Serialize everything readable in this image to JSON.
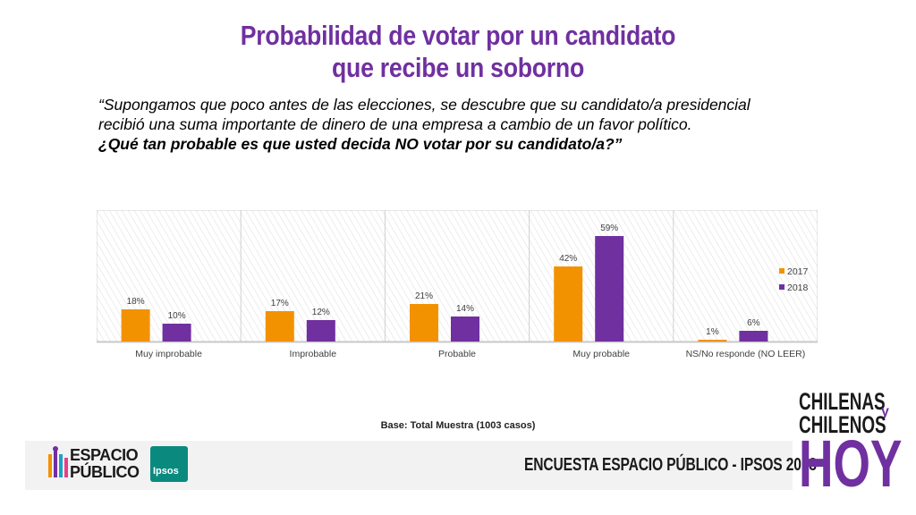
{
  "title_line1": "Probabilidad de votar por un candidato",
  "title_line2": "que recibe un soborno",
  "question_line1": "“Supongamos que poco antes de las elecciones, se descubre que su candidato/a presidencial",
  "question_line2": "recibió una suma importante de dinero de una empresa a cambio de un favor político.",
  "question_line3": "¿Qué tan probable es que usted decida NO votar por su candidato/a?”",
  "base_note": "Base: Total Muestra (1003 casos)",
  "footer": {
    "espacio_line1": "ESPACIO",
    "espacio_line2": "PÚBLICO",
    "ipsos": "Ipsos",
    "encuesta": "ENCUESTA ESPACIO PÚBLICO - IPSOS 2018",
    "chilenas": "CHILENAS",
    "y": "y",
    "chilenos": "CHILENOS",
    "hoy": "HOY"
  },
  "chart_data": {
    "type": "bar",
    "categories": [
      "Muy improbable",
      "Improbable",
      "Probable",
      "Muy probable",
      "NS/No responde (NO LEER)"
    ],
    "series": [
      {
        "name": "2017",
        "values": [
          18,
          17,
          21,
          42,
          1
        ],
        "color": "#f39200"
      },
      {
        "name": "2018",
        "values": [
          10,
          12,
          14,
          59,
          6
        ],
        "color": "#7030a0"
      }
    ],
    "value_suffix": "%",
    "ylim": [
      0,
      70
    ],
    "grid": true,
    "legend": "right"
  }
}
